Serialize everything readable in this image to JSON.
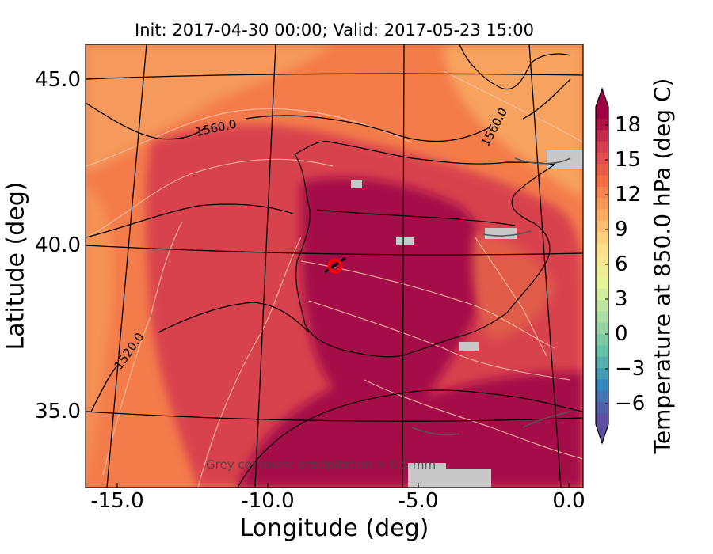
{
  "title": "Init: 2017-04-30 00:00; Valid: 2017-05-23 15:00",
  "x_axis": {
    "label": "Longitude (deg)",
    "ticks": [
      {
        "label": "-15.0"
      },
      {
        "label": "-10.0"
      },
      {
        "label": "-5.0"
      },
      {
        "label": "0.0"
      }
    ]
  },
  "y_axis": {
    "label": "Latitude (deg)",
    "ticks": [
      {
        "label": "45.0"
      },
      {
        "label": "40.0"
      },
      {
        "label": "35.0"
      }
    ]
  },
  "colorbar": {
    "label": "Temperature at 850.0 hPa (deg C)",
    "ticks": [
      "18",
      "15",
      "12",
      "9",
      "6",
      "3",
      "0",
      "−3",
      "−6"
    ],
    "colors": [
      "#5e4fa2",
      "#3288bd",
      "#66c2a5",
      "#abdda4",
      "#e6f598",
      "#fee08b",
      "#fdae61",
      "#f46d43",
      "#d53e4f",
      "#9e0142"
    ]
  },
  "contour_labels": {
    "geopotential": [
      "1560.0",
      "1560.0",
      "1520.0"
    ]
  },
  "marker": {
    "lon": -7.7,
    "lat": 39.3,
    "color": "#ff0000"
  },
  "footnote": "Grey contours: precipitation > 0.5 mm",
  "colors": {
    "warm": "#f46d43",
    "hot": "#d53e4f",
    "hottest": "#9e0142",
    "mild": "#fdae61",
    "precip": "#bdbdbd"
  }
}
